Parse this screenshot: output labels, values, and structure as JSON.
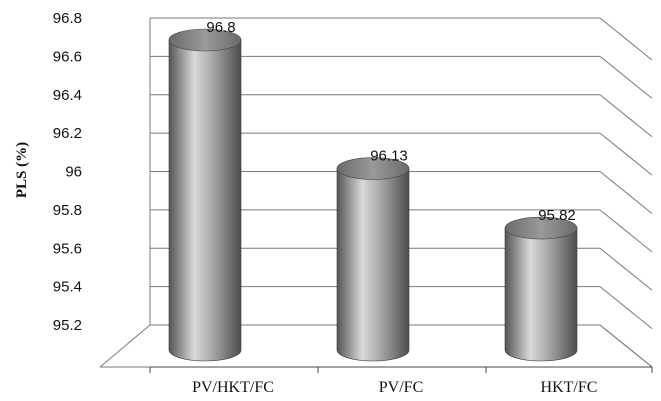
{
  "chart_data": {
    "type": "bar",
    "categories": [
      "PV/HKT/FC",
      "PV/FC",
      "HKT/FC"
    ],
    "values": [
      96.8,
      96.13,
      95.82
    ],
    "data_labels": [
      "96.8",
      "96.13",
      "95.82"
    ],
    "ylabel": "PLS (%)",
    "ylim": [
      95.2,
      96.8
    ],
    "yticks": [
      "95.2",
      "95.4",
      "95.6",
      "95.8",
      "96",
      "96.2",
      "96.4",
      "96.6",
      "96.8"
    ],
    "grid": true,
    "legend": "none",
    "style": "3d-cylinder",
    "bar_color": "#8a8a8a",
    "grid_color": "#7a7a7a"
  }
}
